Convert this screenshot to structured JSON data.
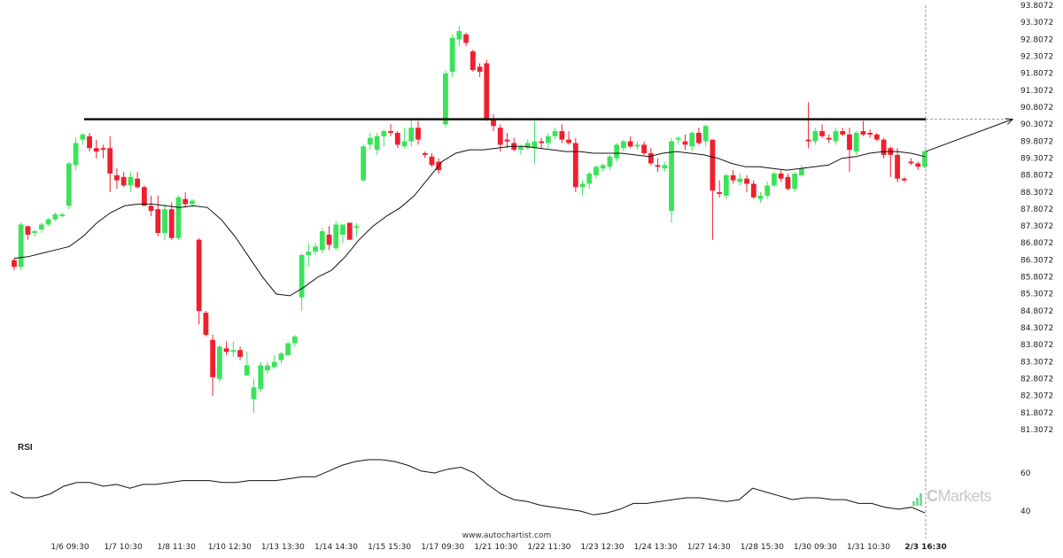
{
  "chart_data": {
    "type": "candlestick",
    "price_axis": {
      "ylim": [
        80.8,
        93.9
      ],
      "tick_labels": [
        "93.8072",
        "93.3072",
        "92.8072",
        "92.3072",
        "91.8072",
        "91.3072",
        "90.8072",
        "90.3072",
        "89.8072",
        "89.3072",
        "88.8072",
        "88.3072",
        "87.8072",
        "87.3072",
        "86.8072",
        "86.3072",
        "85.8072",
        "85.3072",
        "84.8072",
        "84.3072",
        "83.8072",
        "83.3072",
        "82.8072",
        "82.3072",
        "81.8072",
        "81.3072"
      ]
    },
    "x_tick_labels": [
      "1/6 09:30",
      "1/7 10:30",
      "1/8 11:30",
      "1/10 12:30",
      "1/13 13:30",
      "1/14 14:30",
      "1/15 15:30",
      "1/17 09:30",
      "1/21 10:30",
      "1/22 11:30",
      "1/23 12:30",
      "1/24 13:30",
      "1/27 14:30",
      "1/28 15:30",
      "1/30 09:30",
      "1/31 10:30",
      "2/3 16:30"
    ],
    "resistance_level": 90.45,
    "candles": [
      [
        86.3,
        86.35,
        86.0,
        86.1
      ],
      [
        86.1,
        87.4,
        86.0,
        87.35
      ],
      [
        87.3,
        87.3,
        86.9,
        87.05
      ],
      [
        87.1,
        87.2,
        87.0,
        87.15
      ],
      [
        87.2,
        87.4,
        87.1,
        87.35
      ],
      [
        87.35,
        87.55,
        87.3,
        87.5
      ],
      [
        87.5,
        87.7,
        87.45,
        87.65
      ],
      [
        87.6,
        87.7,
        87.55,
        87.65
      ],
      [
        87.9,
        89.2,
        87.8,
        89.15
      ],
      [
        89.1,
        89.9,
        88.95,
        89.75
      ],
      [
        89.85,
        90.05,
        89.7,
        90.0
      ],
      [
        89.95,
        90.05,
        89.5,
        89.6
      ],
      [
        89.6,
        89.85,
        89.3,
        89.5
      ],
      [
        89.6,
        89.7,
        89.3,
        89.55
      ],
      [
        89.6,
        89.95,
        88.3,
        88.85
      ],
      [
        88.8,
        89.0,
        88.4,
        88.65
      ],
      [
        88.75,
        88.9,
        88.45,
        88.5
      ],
      [
        88.5,
        88.9,
        88.3,
        88.75
      ],
      [
        88.7,
        88.9,
        88.4,
        88.45
      ],
      [
        88.45,
        88.5,
        87.9,
        87.9
      ],
      [
        87.9,
        88.2,
        87.6,
        87.75
      ],
      [
        87.8,
        88.2,
        87.0,
        87.1
      ],
      [
        87.1,
        87.95,
        86.9,
        87.8
      ],
      [
        87.8,
        88.0,
        86.9,
        86.95
      ],
      [
        86.95,
        88.2,
        86.9,
        88.15
      ],
      [
        88.1,
        88.3,
        87.85,
        87.95
      ],
      [
        87.95,
        88.1,
        87.85,
        88.05
      ],
      [
        86.9,
        86.95,
        84.4,
        84.8
      ],
      [
        84.75,
        84.8,
        84.05,
        84.1
      ],
      [
        83.95,
        84.1,
        82.3,
        82.85
      ],
      [
        82.8,
        83.8,
        82.7,
        83.75
      ],
      [
        83.7,
        83.9,
        83.5,
        83.6
      ],
      [
        83.6,
        83.9,
        83.45,
        83.65
      ],
      [
        83.65,
        83.75,
        83.35,
        83.45
      ],
      [
        82.9,
        83.6,
        82.9,
        83.2
      ],
      [
        82.2,
        82.8,
        81.8,
        82.55
      ],
      [
        82.5,
        83.3,
        82.4,
        83.2
      ],
      [
        83.05,
        83.3,
        82.95,
        83.2
      ],
      [
        83.15,
        83.5,
        83.1,
        83.3
      ],
      [
        83.35,
        83.6,
        83.25,
        83.55
      ],
      [
        83.5,
        83.9,
        83.5,
        83.85
      ],
      [
        83.85,
        84.1,
        83.75,
        84.05
      ],
      [
        85.2,
        86.5,
        84.8,
        86.45
      ],
      [
        86.45,
        86.8,
        86.1,
        86.55
      ],
      [
        86.55,
        86.8,
        86.45,
        86.7
      ],
      [
        86.6,
        87.25,
        86.5,
        87.15
      ],
      [
        87.05,
        87.3,
        86.6,
        86.75
      ],
      [
        86.65,
        87.45,
        86.6,
        87.35
      ],
      [
        87.05,
        87.3,
        86.8,
        87.35
      ],
      [
        87.4,
        87.35,
        86.9,
        86.9
      ],
      [
        87.25,
        87.4,
        87.0,
        87.3
      ],
      [
        88.65,
        89.7,
        88.6,
        89.65
      ],
      [
        89.7,
        90.05,
        89.55,
        89.9
      ],
      [
        89.55,
        90.05,
        89.4,
        89.95
      ],
      [
        89.95,
        90.15,
        89.65,
        90.1
      ],
      [
        90.1,
        90.3,
        89.95,
        90.05
      ],
      [
        90.05,
        90.1,
        89.6,
        89.7
      ],
      [
        89.65,
        90.2,
        89.6,
        89.8
      ],
      [
        89.8,
        90.45,
        89.65,
        90.2
      ],
      [
        90.2,
        90.4,
        89.7,
        89.85
      ],
      [
        89.45,
        89.5,
        89.3,
        89.4
      ],
      [
        89.35,
        89.45,
        89.05,
        89.1
      ],
      [
        89.2,
        89.3,
        88.85,
        88.95
      ],
      [
        90.3,
        91.9,
        90.2,
        91.8
      ],
      [
        91.85,
        92.95,
        91.7,
        92.85
      ],
      [
        92.8,
        93.2,
        92.6,
        93.05
      ],
      [
        92.95,
        93.0,
        92.6,
        92.7
      ],
      [
        92.45,
        92.5,
        91.85,
        91.9
      ],
      [
        92.0,
        92.1,
        91.7,
        91.85
      ],
      [
        92.1,
        92.2,
        90.4,
        90.45
      ],
      [
        90.45,
        90.6,
        90.1,
        90.25
      ],
      [
        90.2,
        90.3,
        89.5,
        89.7
      ],
      [
        89.85,
        90.05,
        89.6,
        89.8
      ],
      [
        89.75,
        89.9,
        89.5,
        89.55
      ],
      [
        89.55,
        89.7,
        89.4,
        89.65
      ],
      [
        89.6,
        89.85,
        89.55,
        89.75
      ],
      [
        89.6,
        90.4,
        89.15,
        89.8
      ],
      [
        89.8,
        89.9,
        89.6,
        89.75
      ],
      [
        89.75,
        90.05,
        89.6,
        89.95
      ],
      [
        89.95,
        90.2,
        89.85,
        90.1
      ],
      [
        90.1,
        90.3,
        89.75,
        89.85
      ],
      [
        89.85,
        90.1,
        89.7,
        89.75
      ],
      [
        89.75,
        89.9,
        88.3,
        88.45
      ],
      [
        88.45,
        88.65,
        88.2,
        88.55
      ],
      [
        88.55,
        88.9,
        88.4,
        88.85
      ],
      [
        88.8,
        89.1,
        88.7,
        89.05
      ],
      [
        89.0,
        89.15,
        88.9,
        89.1
      ],
      [
        89.05,
        89.4,
        88.95,
        89.35
      ],
      [
        89.3,
        89.75,
        89.2,
        89.7
      ],
      [
        89.6,
        89.85,
        89.5,
        89.8
      ],
      [
        89.8,
        89.95,
        89.6,
        89.65
      ],
      [
        89.65,
        89.8,
        89.55,
        89.7
      ],
      [
        89.7,
        89.8,
        89.4,
        89.45
      ],
      [
        89.45,
        89.6,
        89.1,
        89.15
      ],
      [
        89.1,
        89.3,
        88.9,
        89.05
      ],
      [
        89.0,
        89.2,
        88.9,
        89.1
      ],
      [
        87.75,
        89.9,
        87.4,
        89.8
      ],
      [
        89.85,
        89.95,
        89.7,
        89.9
      ],
      [
        89.8,
        90.0,
        89.55,
        89.7
      ],
      [
        89.65,
        90.1,
        89.5,
        90.05
      ],
      [
        90.05,
        90.2,
        89.7,
        89.75
      ],
      [
        89.8,
        90.3,
        89.65,
        90.25
      ],
      [
        89.85,
        89.85,
        86.9,
        88.35
      ],
      [
        88.3,
        88.65,
        88.15,
        88.25
      ],
      [
        88.2,
        88.85,
        88.1,
        88.8
      ],
      [
        88.8,
        88.95,
        88.55,
        88.65
      ],
      [
        88.6,
        88.85,
        88.5,
        88.7
      ],
      [
        88.7,
        88.8,
        88.3,
        88.55
      ],
      [
        88.55,
        88.65,
        88.1,
        88.15
      ],
      [
        88.1,
        88.3,
        88.0,
        88.2
      ],
      [
        88.2,
        88.6,
        88.1,
        88.5
      ],
      [
        88.5,
        88.9,
        88.45,
        88.85
      ],
      [
        88.85,
        88.95,
        88.6,
        88.7
      ],
      [
        88.75,
        88.85,
        88.35,
        88.4
      ],
      [
        88.4,
        88.9,
        88.3,
        88.85
      ],
      [
        88.8,
        89.1,
        88.75,
        89.0
      ],
      [
        89.85,
        90.95,
        89.6,
        89.8
      ],
      [
        89.8,
        90.2,
        89.7,
        90.1
      ],
      [
        90.1,
        90.3,
        89.9,
        89.95
      ],
      [
        89.9,
        90.0,
        89.75,
        89.85
      ],
      [
        89.8,
        90.2,
        89.7,
        90.1
      ],
      [
        90.1,
        90.2,
        89.95,
        90.0
      ],
      [
        90.0,
        90.2,
        88.9,
        89.55
      ],
      [
        89.5,
        90.1,
        89.4,
        90.05
      ],
      [
        90.1,
        90.4,
        89.95,
        90.0
      ],
      [
        90.05,
        90.15,
        89.9,
        90.0
      ],
      [
        90.0,
        90.05,
        89.8,
        89.85
      ],
      [
        89.85,
        89.9,
        89.3,
        89.4
      ],
      [
        89.6,
        89.65,
        88.75,
        89.4
      ],
      [
        89.4,
        89.6,
        88.6,
        88.7
      ],
      [
        88.7,
        88.75,
        88.6,
        88.65
      ],
      [
        89.2,
        89.3,
        89.1,
        89.15
      ],
      [
        89.15,
        89.2,
        88.95,
        89.05
      ],
      [
        89.05,
        89.55,
        89.0,
        89.5
      ]
    ],
    "moving_average": [
      86.35,
      86.4,
      86.5,
      86.6,
      86.7,
      87.0,
      87.4,
      87.7,
      87.9,
      87.95,
      87.95,
      87.9,
      87.85,
      87.9,
      87.85,
      87.5,
      87.0,
      86.4,
      85.8,
      85.3,
      85.25,
      85.5,
      85.8,
      86.0,
      86.4,
      86.9,
      87.3,
      87.6,
      87.85,
      88.2,
      88.7,
      89.2,
      89.45,
      89.55,
      89.55,
      89.6,
      89.65,
      89.65,
      89.6,
      89.55,
      89.5,
      89.5,
      89.45,
      89.45,
      89.45,
      89.4,
      89.35,
      89.45,
      89.5,
      89.45,
      89.4,
      89.3,
      89.15,
      89.05,
      89.05,
      89.0,
      88.95,
      89.0,
      89.05,
      89.1,
      89.3,
      89.35,
      89.45,
      89.5,
      89.5,
      89.45,
      89.35
    ],
    "projection": {
      "from": 89.5,
      "to": 90.45
    },
    "rsi": {
      "label": "RSI",
      "tick_labels": [
        "60",
        "40"
      ],
      "ylim": [
        30,
        82
      ],
      "values": [
        50,
        47,
        47,
        49,
        53,
        55,
        55,
        53,
        54,
        52,
        54,
        54,
        55,
        56,
        56,
        56,
        55,
        55,
        56,
        56,
        56,
        57,
        58,
        58,
        61,
        64,
        66,
        67,
        67,
        66,
        64,
        61,
        60,
        62,
        63,
        60,
        54,
        49,
        46,
        45,
        43,
        42,
        41,
        40,
        38,
        39,
        41,
        44,
        44,
        45,
        46,
        47,
        47,
        46,
        45,
        46,
        52,
        50,
        48,
        46,
        47,
        47,
        46,
        46,
        44,
        44,
        42,
        41,
        42,
        39
      ]
    },
    "site_label": "www.autochartist.com",
    "brand": "Markets"
  }
}
